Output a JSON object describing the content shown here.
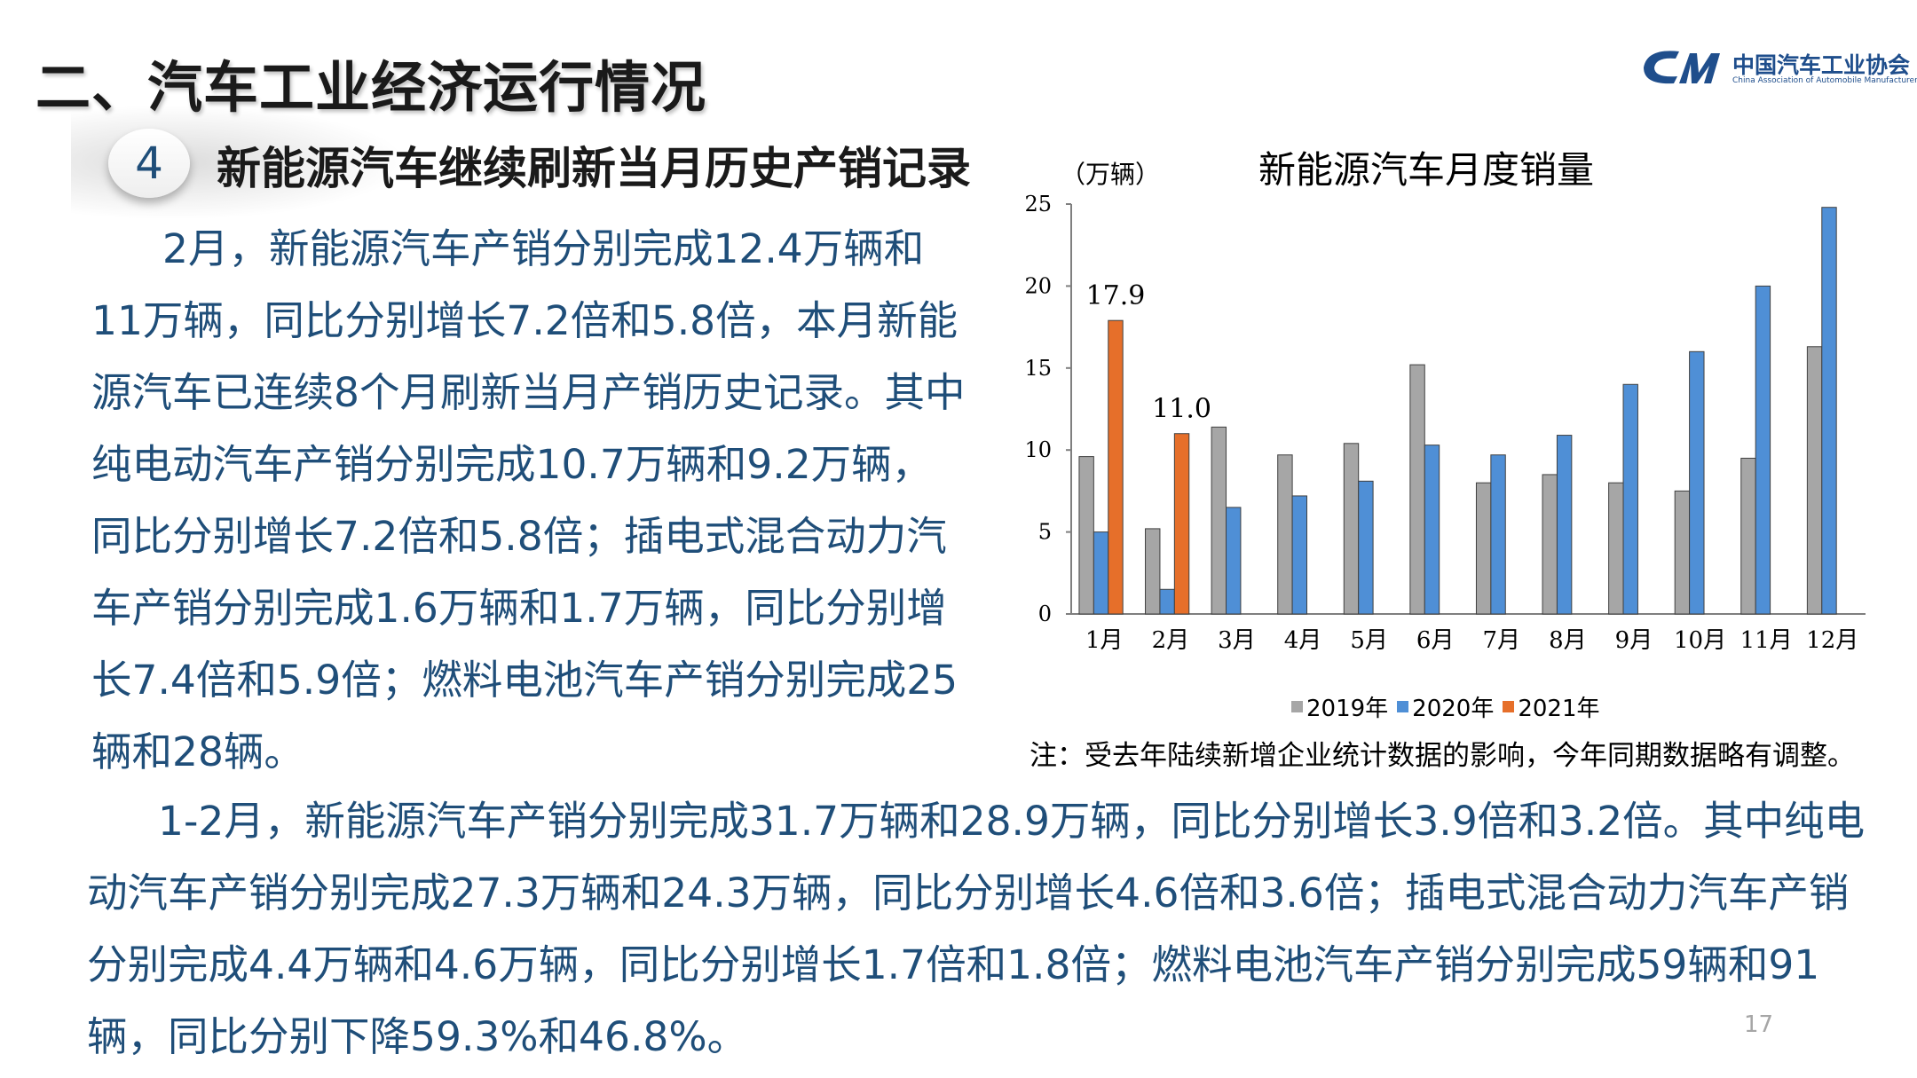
{
  "title": "二、汽车工业经济运行情况",
  "logo": {
    "cn": "中国汽车工业协会",
    "en": "China Association of Automobile Manufacturers"
  },
  "section": {
    "number": "4",
    "heading": "新能源汽车继续刷新当月历史产销记录"
  },
  "paragraph1": "2月，新能源汽车产销分别完成12.4万辆和11万辆，同比分别增长7.2倍和5.8倍，本月新能源汽车已连续8个月刷新当月产销历史记录。其中纯电动汽车产销分别完成10.7万辆和9.2万辆，同比分别增长7.2倍和5.8倍；插电式混合动力汽车产销分别完成1.6万辆和1.7万辆，同比分别增长7.4倍和5.9倍；燃料电池汽车产销分别完成25辆和28辆。",
  "paragraph2": "1-2月，新能源汽车产销分别完成31.7万辆和28.9万辆，同比分别增长3.9倍和3.2倍。其中纯电动汽车产销分别完成27.3万辆和24.3万辆，同比分别增长4.6倍和3.6倍；插电式混合动力汽车产销分别完成4.4万辆和4.6万辆，同比分别增长1.7倍和1.8倍；燃料电池汽车产销分别完成59辆和91辆，同比分别下降59.3%和46.8%。",
  "chart_note": "注：受去年陆续新增企业统计数据的影响，今年同期数据略有调整。",
  "page_number": "17",
  "chart_data": {
    "type": "bar",
    "title": "新能源汽车月度销量",
    "ylabel": "（万辆）",
    "ylim": [
      0,
      25
    ],
    "yticks": [
      "0",
      "5",
      "10",
      "15",
      "20",
      "25"
    ],
    "grid": false,
    "legend_position": "bottom",
    "categories": [
      "1月",
      "2月",
      "3月",
      "4月",
      "5月",
      "6月",
      "7月",
      "8月",
      "9月",
      "10月",
      "11月",
      "12月"
    ],
    "series": [
      {
        "name": "2019年",
        "color": "#a6a6a6",
        "values": [
          9.6,
          5.2,
          11.4,
          9.7,
          10.4,
          15.2,
          8.0,
          8.5,
          8.0,
          7.5,
          9.5,
          16.3
        ]
      },
      {
        "name": "2020年",
        "color": "#4f8fd6",
        "values": [
          5.0,
          1.5,
          6.5,
          7.2,
          8.1,
          10.3,
          9.7,
          10.9,
          14.0,
          16.0,
          20.0,
          24.8
        ]
      },
      {
        "name": "2021年",
        "color": "#e66f2a",
        "values": [
          17.9,
          11.0,
          null,
          null,
          null,
          null,
          null,
          null,
          null,
          null,
          null,
          null
        ]
      }
    ],
    "data_labels": [
      {
        "series": "2021年",
        "category": "1月",
        "text": "17.9"
      },
      {
        "series": "2021年",
        "category": "2月",
        "text": "11.0"
      }
    ]
  }
}
